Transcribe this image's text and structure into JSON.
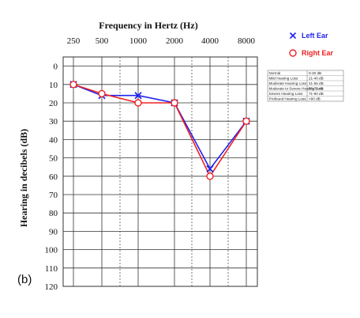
{
  "panel_label": "(b)",
  "chart_data": {
    "type": "line",
    "title": "Frequency in Hertz (Hz)",
    "xlabel": "",
    "ylabel": "Hearing in decibels (dB)",
    "categories": [
      "250",
      "500",
      "1000",
      "2000",
      "4000",
      "8000"
    ],
    "y_ticks": [
      0,
      10,
      20,
      30,
      40,
      50,
      60,
      70,
      80,
      90,
      100,
      110,
      120
    ],
    "ylim": [
      -5,
      120
    ],
    "y_inverted": true,
    "grid": true,
    "legend_position": "top-right",
    "series": [
      {
        "name": "Left Ear",
        "color": "#2222ee",
        "marker": "x",
        "values": [
          10,
          16,
          16,
          20,
          56,
          30
        ]
      },
      {
        "name": "Right Ear",
        "color": "#ee2222",
        "marker": "o",
        "values": [
          10,
          15,
          20,
          20,
          60,
          30
        ]
      }
    ],
    "classification_table": [
      {
        "label": "Normal",
        "range": "0-20 dB"
      },
      {
        "label": "Mild Hearing Loss",
        "range": "21-40 dB"
      },
      {
        "label": "Moderate Hearing Loss",
        "range": "41-55 dB"
      },
      {
        "label": "Moderate to Severe Hearing Loss",
        "range": "56-70 dB"
      },
      {
        "label": "Severe Hearing Loss",
        "range": "71-90 dB"
      },
      {
        "label": "Profound Hearing Loss",
        "range": ">90 dB"
      }
    ]
  }
}
